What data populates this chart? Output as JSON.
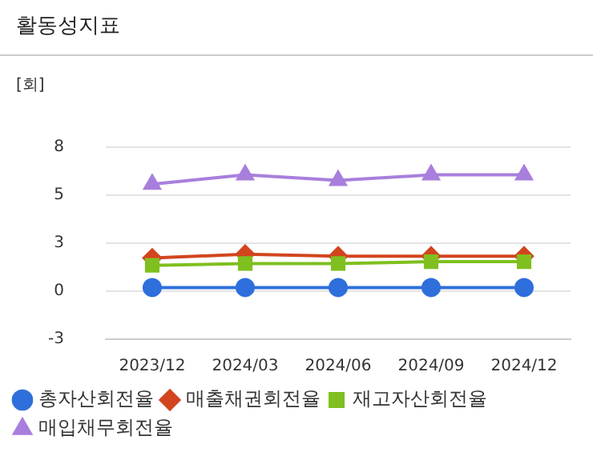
{
  "chart_data": {
    "type": "line",
    "title": "활동성지표",
    "ylabel": "[회]",
    "categories": [
      "2023/12",
      "2024/03",
      "2024/06",
      "2024/09",
      "2024/12"
    ],
    "series": [
      {
        "name": "총자산회전율",
        "color": "#2e6fdc",
        "marker": "circle",
        "values": [
          0.2,
          0.2,
          0.2,
          0.2,
          0.2
        ]
      },
      {
        "name": "매출채권회전율",
        "color": "#d2451e",
        "marker": "diamond",
        "values": [
          1.8,
          2.0,
          1.9,
          1.9,
          1.9
        ]
      },
      {
        "name": "재고자산회전율",
        "color": "#7fbf1f",
        "marker": "square",
        "values": [
          1.4,
          1.5,
          1.5,
          1.6,
          1.6
        ]
      },
      {
        "name": "매입채무회전율",
        "color": "#a87fdc",
        "marker": "triangle",
        "values": [
          5.8,
          6.3,
          6.0,
          6.3,
          6.3
        ]
      }
    ],
    "ylim": [
      -2.6,
      7.8
    ],
    "yticks": [
      {
        "value": -2.6,
        "label": "-3"
      },
      {
        "value": 0,
        "label": "0"
      },
      {
        "value": 2.6,
        "label": "3"
      },
      {
        "value": 5.2,
        "label": "5"
      },
      {
        "value": 7.8,
        "label": "8"
      }
    ],
    "grid": "y",
    "legend": "bottom",
    "line_style": "solid"
  }
}
